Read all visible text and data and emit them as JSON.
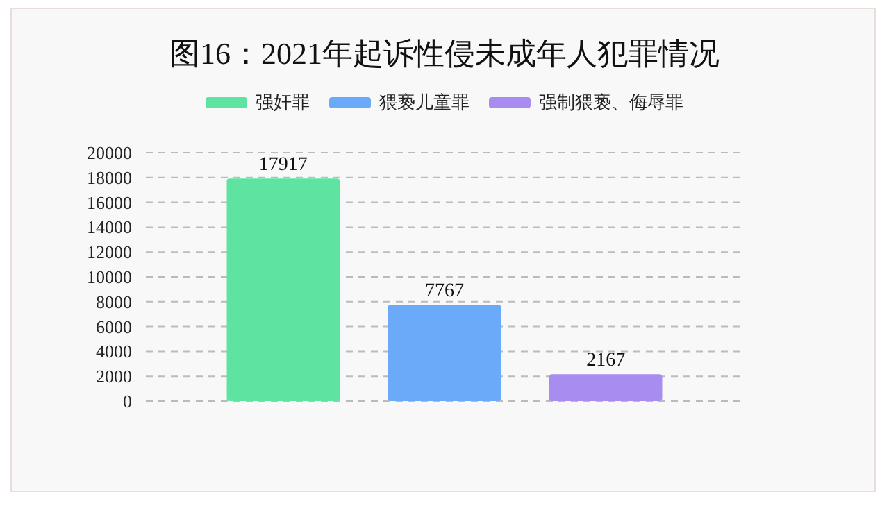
{
  "chart_data": {
    "type": "bar",
    "title": "图16：2021年起诉性侵未成年人犯罪情况",
    "categories": [
      null
    ],
    "series": [
      {
        "name": "强奸罪",
        "color": "#5ee3a0",
        "values": [
          17917
        ]
      },
      {
        "name": "猥亵儿童罪",
        "color": "#6aaaf8",
        "values": [
          7767
        ]
      },
      {
        "name": "强制猥亵、侮辱罪",
        "color": "#a98cf0",
        "values": [
          2167
        ]
      }
    ],
    "ylim": [
      0,
      20000
    ],
    "yticks": [
      0,
      2000,
      4000,
      6000,
      8000,
      10000,
      12000,
      14000,
      16000,
      18000,
      20000
    ],
    "grid": "y",
    "legend": "top",
    "data_labels": true
  }
}
